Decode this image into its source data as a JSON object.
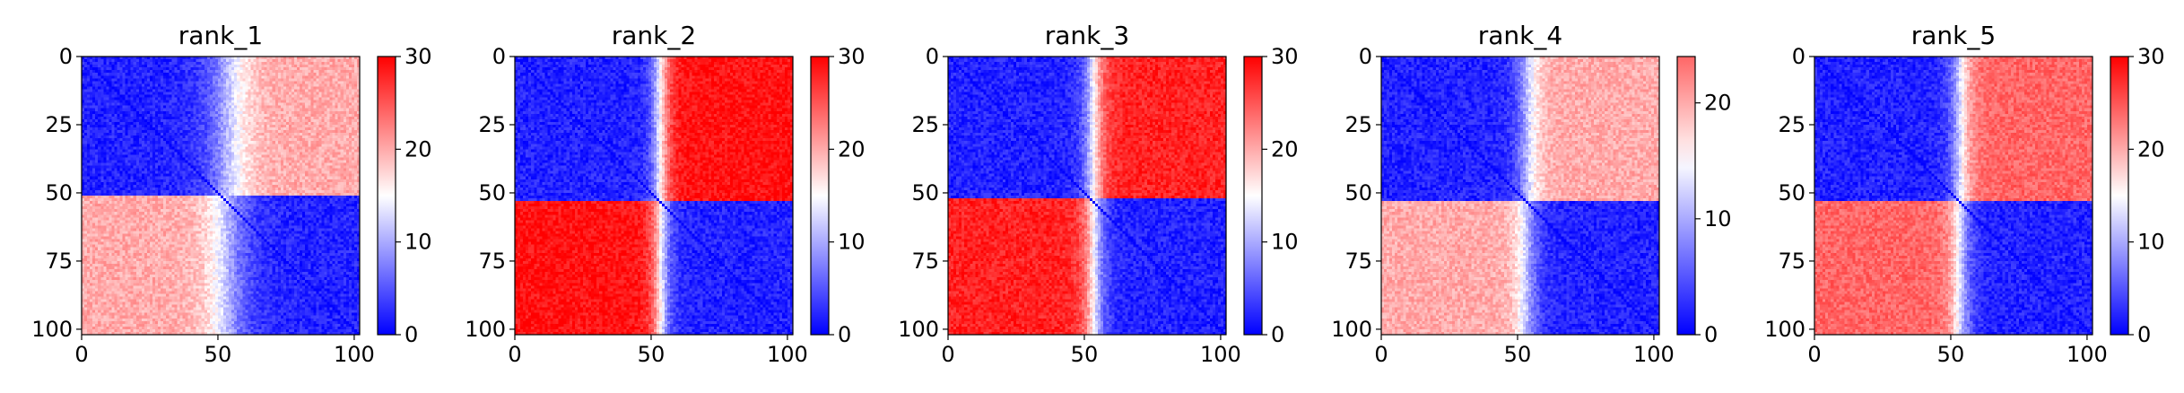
{
  "chart_data": [
    {
      "type": "heatmap",
      "title": "rank_1",
      "xlim": [
        0,
        102
      ],
      "ylim": [
        102,
        0
      ],
      "xticks": [
        "0",
        "50",
        "100"
      ],
      "yticks": [
        "0",
        "25",
        "50",
        "75",
        "100"
      ],
      "colorbar": {
        "min": 0,
        "max": 30,
        "ticks": [
          "0",
          "10",
          "20",
          "30"
        ],
        "cmap": [
          "#0000ff",
          "#ffffff",
          "#ff0000"
        ]
      },
      "block_boundary_row": 51,
      "block_boundary_col": 53,
      "within_block_mean": 2,
      "off_block_mean": 20,
      "transition_width": 18
    },
    {
      "type": "heatmap",
      "title": "rank_2",
      "xlim": [
        0,
        102
      ],
      "ylim": [
        102,
        0
      ],
      "xticks": [
        "0",
        "50",
        "100"
      ],
      "yticks": [
        "0",
        "25",
        "50",
        "75",
        "100"
      ],
      "colorbar": {
        "min": 0,
        "max": 30,
        "ticks": [
          "0",
          "10",
          "20",
          "30"
        ],
        "cmap": [
          "#0000ff",
          "#ffffff",
          "#ff0000"
        ]
      },
      "block_boundary_row": 53,
      "block_boundary_col": 53,
      "within_block_mean": 2,
      "off_block_mean": 29,
      "transition_width": 8
    },
    {
      "type": "heatmap",
      "title": "rank_3",
      "xlim": [
        0,
        102
      ],
      "ylim": [
        102,
        0
      ],
      "xticks": [
        "0",
        "50",
        "100"
      ],
      "yticks": [
        "0",
        "25",
        "50",
        "75",
        "100"
      ],
      "colorbar": {
        "min": 0,
        "max": 30,
        "ticks": [
          "0",
          "10",
          "20",
          "30"
        ],
        "cmap": [
          "#0000ff",
          "#ffffff",
          "#ff0000"
        ]
      },
      "block_boundary_row": 52,
      "block_boundary_col": 53,
      "within_block_mean": 2,
      "off_block_mean": 28,
      "transition_width": 9
    },
    {
      "type": "heatmap",
      "title": "rank_4",
      "xlim": [
        0,
        102
      ],
      "ylim": [
        102,
        0
      ],
      "xticks": [
        "0",
        "50",
        "100"
      ],
      "yticks": [
        "0",
        "25",
        "50",
        "75",
        "100"
      ],
      "colorbar": {
        "min": 0,
        "max": 24,
        "ticks": [
          "0",
          "10",
          "20"
        ],
        "cmap": [
          "#0000ff",
          "#ffffff",
          "#ff0000"
        ]
      },
      "block_boundary_row": 53,
      "block_boundary_col": 53,
      "within_block_mean": 2,
      "off_block_mean": 20,
      "transition_width": 10
    },
    {
      "type": "heatmap",
      "title": "rank_5",
      "xlim": [
        0,
        102
      ],
      "ylim": [
        102,
        0
      ],
      "xticks": [
        "0",
        "50",
        "100"
      ],
      "yticks": [
        "0",
        "25",
        "50",
        "75",
        "100"
      ],
      "colorbar": {
        "min": 0,
        "max": 30,
        "ticks": [
          "0",
          "10",
          "20",
          "30"
        ],
        "cmap": [
          "#0000ff",
          "#ffffff",
          "#ff0000"
        ]
      },
      "block_boundary_row": 53,
      "block_boundary_col": 53,
      "within_block_mean": 2,
      "off_block_mean": 24,
      "transition_width": 9
    }
  ]
}
